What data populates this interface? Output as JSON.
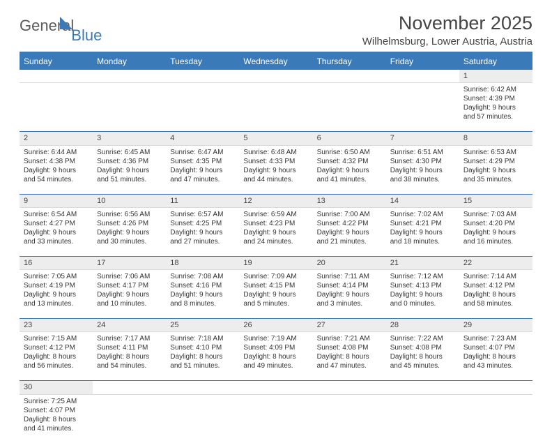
{
  "logo": {
    "text1": "General",
    "text2": "Blue"
  },
  "title": "November 2025",
  "location": "Wilhelmsburg, Lower Austria, Austria",
  "colors": {
    "accent": "#3a7ab8",
    "header_bg": "#3a7ab8",
    "daynum_bg": "#ededed",
    "text": "#333333"
  },
  "weekdays": [
    "Sunday",
    "Monday",
    "Tuesday",
    "Wednesday",
    "Thursday",
    "Friday",
    "Saturday"
  ],
  "weeks": [
    [
      null,
      null,
      null,
      null,
      null,
      null,
      {
        "n": "1",
        "sr": "Sunrise: 6:42 AM",
        "ss": "Sunset: 4:39 PM",
        "d1": "Daylight: 9 hours",
        "d2": "and 57 minutes."
      }
    ],
    [
      {
        "n": "2",
        "sr": "Sunrise: 6:44 AM",
        "ss": "Sunset: 4:38 PM",
        "d1": "Daylight: 9 hours",
        "d2": "and 54 minutes."
      },
      {
        "n": "3",
        "sr": "Sunrise: 6:45 AM",
        "ss": "Sunset: 4:36 PM",
        "d1": "Daylight: 9 hours",
        "d2": "and 51 minutes."
      },
      {
        "n": "4",
        "sr": "Sunrise: 6:47 AM",
        "ss": "Sunset: 4:35 PM",
        "d1": "Daylight: 9 hours",
        "d2": "and 47 minutes."
      },
      {
        "n": "5",
        "sr": "Sunrise: 6:48 AM",
        "ss": "Sunset: 4:33 PM",
        "d1": "Daylight: 9 hours",
        "d2": "and 44 minutes."
      },
      {
        "n": "6",
        "sr": "Sunrise: 6:50 AM",
        "ss": "Sunset: 4:32 PM",
        "d1": "Daylight: 9 hours",
        "d2": "and 41 minutes."
      },
      {
        "n": "7",
        "sr": "Sunrise: 6:51 AM",
        "ss": "Sunset: 4:30 PM",
        "d1": "Daylight: 9 hours",
        "d2": "and 38 minutes."
      },
      {
        "n": "8",
        "sr": "Sunrise: 6:53 AM",
        "ss": "Sunset: 4:29 PM",
        "d1": "Daylight: 9 hours",
        "d2": "and 35 minutes."
      }
    ],
    [
      {
        "n": "9",
        "sr": "Sunrise: 6:54 AM",
        "ss": "Sunset: 4:27 PM",
        "d1": "Daylight: 9 hours",
        "d2": "and 33 minutes."
      },
      {
        "n": "10",
        "sr": "Sunrise: 6:56 AM",
        "ss": "Sunset: 4:26 PM",
        "d1": "Daylight: 9 hours",
        "d2": "and 30 minutes."
      },
      {
        "n": "11",
        "sr": "Sunrise: 6:57 AM",
        "ss": "Sunset: 4:25 PM",
        "d1": "Daylight: 9 hours",
        "d2": "and 27 minutes."
      },
      {
        "n": "12",
        "sr": "Sunrise: 6:59 AM",
        "ss": "Sunset: 4:23 PM",
        "d1": "Daylight: 9 hours",
        "d2": "and 24 minutes."
      },
      {
        "n": "13",
        "sr": "Sunrise: 7:00 AM",
        "ss": "Sunset: 4:22 PM",
        "d1": "Daylight: 9 hours",
        "d2": "and 21 minutes."
      },
      {
        "n": "14",
        "sr": "Sunrise: 7:02 AM",
        "ss": "Sunset: 4:21 PM",
        "d1": "Daylight: 9 hours",
        "d2": "and 18 minutes."
      },
      {
        "n": "15",
        "sr": "Sunrise: 7:03 AM",
        "ss": "Sunset: 4:20 PM",
        "d1": "Daylight: 9 hours",
        "d2": "and 16 minutes."
      }
    ],
    [
      {
        "n": "16",
        "sr": "Sunrise: 7:05 AM",
        "ss": "Sunset: 4:19 PM",
        "d1": "Daylight: 9 hours",
        "d2": "and 13 minutes."
      },
      {
        "n": "17",
        "sr": "Sunrise: 7:06 AM",
        "ss": "Sunset: 4:17 PM",
        "d1": "Daylight: 9 hours",
        "d2": "and 10 minutes."
      },
      {
        "n": "18",
        "sr": "Sunrise: 7:08 AM",
        "ss": "Sunset: 4:16 PM",
        "d1": "Daylight: 9 hours",
        "d2": "and 8 minutes."
      },
      {
        "n": "19",
        "sr": "Sunrise: 7:09 AM",
        "ss": "Sunset: 4:15 PM",
        "d1": "Daylight: 9 hours",
        "d2": "and 5 minutes."
      },
      {
        "n": "20",
        "sr": "Sunrise: 7:11 AM",
        "ss": "Sunset: 4:14 PM",
        "d1": "Daylight: 9 hours",
        "d2": "and 3 minutes."
      },
      {
        "n": "21",
        "sr": "Sunrise: 7:12 AM",
        "ss": "Sunset: 4:13 PM",
        "d1": "Daylight: 9 hours",
        "d2": "and 0 minutes."
      },
      {
        "n": "22",
        "sr": "Sunrise: 7:14 AM",
        "ss": "Sunset: 4:12 PM",
        "d1": "Daylight: 8 hours",
        "d2": "and 58 minutes."
      }
    ],
    [
      {
        "n": "23",
        "sr": "Sunrise: 7:15 AM",
        "ss": "Sunset: 4:12 PM",
        "d1": "Daylight: 8 hours",
        "d2": "and 56 minutes."
      },
      {
        "n": "24",
        "sr": "Sunrise: 7:17 AM",
        "ss": "Sunset: 4:11 PM",
        "d1": "Daylight: 8 hours",
        "d2": "and 54 minutes."
      },
      {
        "n": "25",
        "sr": "Sunrise: 7:18 AM",
        "ss": "Sunset: 4:10 PM",
        "d1": "Daylight: 8 hours",
        "d2": "and 51 minutes."
      },
      {
        "n": "26",
        "sr": "Sunrise: 7:19 AM",
        "ss": "Sunset: 4:09 PM",
        "d1": "Daylight: 8 hours",
        "d2": "and 49 minutes."
      },
      {
        "n": "27",
        "sr": "Sunrise: 7:21 AM",
        "ss": "Sunset: 4:08 PM",
        "d1": "Daylight: 8 hours",
        "d2": "and 47 minutes."
      },
      {
        "n": "28",
        "sr": "Sunrise: 7:22 AM",
        "ss": "Sunset: 4:08 PM",
        "d1": "Daylight: 8 hours",
        "d2": "and 45 minutes."
      },
      {
        "n": "29",
        "sr": "Sunrise: 7:23 AM",
        "ss": "Sunset: 4:07 PM",
        "d1": "Daylight: 8 hours",
        "d2": "and 43 minutes."
      }
    ],
    [
      {
        "n": "30",
        "sr": "Sunrise: 7:25 AM",
        "ss": "Sunset: 4:07 PM",
        "d1": "Daylight: 8 hours",
        "d2": "and 41 minutes."
      },
      null,
      null,
      null,
      null,
      null,
      null
    ]
  ]
}
